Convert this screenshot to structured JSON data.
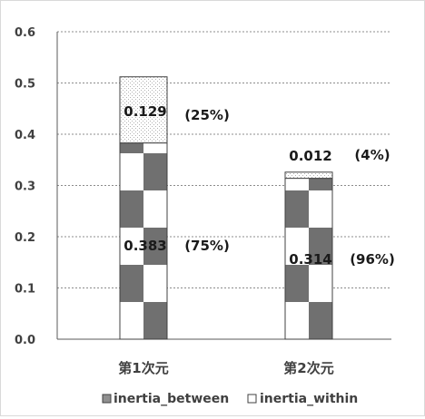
{
  "chart_data": {
    "type": "bar",
    "stacked": true,
    "categories": [
      "第1次元",
      "第2次元"
    ],
    "series": [
      {
        "name": "inertia_between",
        "values": [
          0.383,
          0.314
        ],
        "color": "#707070",
        "pattern": "large-checker"
      },
      {
        "name": "inertia_within",
        "values": [
          0.129,
          0.012
        ],
        "color": "#d8d8d8",
        "pattern": "fine-dots"
      }
    ],
    "data_labels": {
      "inertia_between": [
        {
          "value": "0.383",
          "percent": "(75%)"
        },
        {
          "value": "0.314",
          "percent": "(96%)"
        }
      ],
      "inertia_within": [
        {
          "value": "0.129",
          "percent": "(25%)"
        },
        {
          "value": "0.012",
          "percent": "(4%)"
        }
      ]
    },
    "ylim": [
      0,
      0.6
    ],
    "yticks": [
      "0.0",
      "0.1",
      "0.2",
      "0.3",
      "0.4",
      "0.5",
      "0.6"
    ],
    "grid": true,
    "legend_position": "bottom",
    "title": "",
    "xlabel": "",
    "ylabel": ""
  }
}
